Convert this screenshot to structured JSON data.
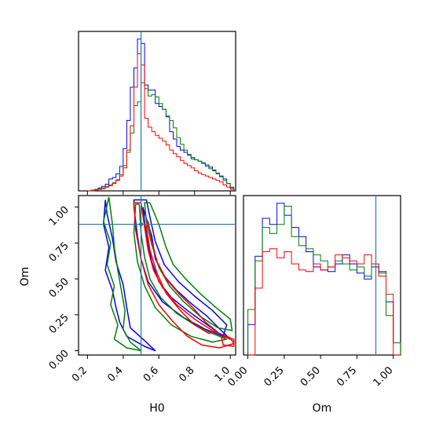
{
  "chart_data": [
    {
      "type": "histogram",
      "panel": "H0 marginal",
      "xlim": [
        0.15,
        1.03
      ],
      "truth_line": 0.5,
      "bin_edges": [
        0.2,
        0.22,
        0.24,
        0.26,
        0.28,
        0.3,
        0.32,
        0.34,
        0.36,
        0.38,
        0.4,
        0.42,
        0.44,
        0.46,
        0.48,
        0.5,
        0.52,
        0.54,
        0.56,
        0.58,
        0.6,
        0.62,
        0.64,
        0.66,
        0.68,
        0.7,
        0.72,
        0.74,
        0.76,
        0.78,
        0.8,
        0.82,
        0.84,
        0.86,
        0.88,
        0.9,
        0.92,
        0.94,
        0.96,
        0.98,
        1.0,
        1.02
      ],
      "series": [
        {
          "color": "#0000ff",
          "counts": [
            0,
            1,
            2,
            4,
            6,
            9,
            16,
            18,
            23,
            33,
            57,
            95,
            140,
            166,
            205,
            199,
            143,
            136,
            136,
            118,
            114,
            110,
            100,
            80,
            70,
            60,
            55,
            52,
            49,
            45,
            42,
            40,
            38,
            35,
            32,
            28,
            24,
            20,
            16,
            10,
            4
          ]
        },
        {
          "color": "#008000",
          "counts": [
            0,
            1,
            2,
            3,
            4,
            6,
            8,
            11,
            15,
            22,
            34,
            52,
            78,
            115,
            120,
            146,
            138,
            128,
            130,
            127,
            118,
            110,
            101,
            95,
            85,
            72,
            63,
            55,
            48,
            43,
            42,
            40,
            37,
            33,
            30,
            27,
            23,
            19,
            14,
            10,
            5
          ]
        },
        {
          "color": "#ff0000",
          "counts": [
            0,
            0,
            1,
            2,
            3,
            5,
            7,
            10,
            14,
            20,
            31,
            55,
            88,
            140,
            185,
            170,
            98,
            86,
            80,
            75,
            71,
            67,
            62,
            55,
            50,
            46,
            41,
            37,
            34,
            31,
            27,
            24,
            22,
            20,
            18,
            16,
            14,
            12,
            8,
            5,
            2
          ]
        }
      ]
    },
    {
      "type": "contour",
      "panel": "H0 vs Om",
      "xlabel": "H0",
      "ylabel": "Om",
      "xlim": [
        0.15,
        1.03
      ],
      "ylim": [
        -0.03,
        1.08
      ],
      "xticks": [
        "0.2",
        "0.4",
        "0.6",
        "0.8",
        "1.0"
      ],
      "yticks": [
        "0.00",
        "0.25",
        "0.50",
        "0.75",
        "1.00"
      ],
      "xtick_values": [
        0.2,
        0.4,
        0.6,
        0.8,
        1.0
      ],
      "ytick_values": [
        0.0,
        0.25,
        0.5,
        0.75,
        1.0
      ],
      "truth": {
        "H0": 0.5,
        "Om": 0.88
      },
      "series": [
        {
          "color": "#0000ff",
          "contours": [
            [
              [
                0.51,
                1.0
              ],
              [
                0.56,
                0.8
              ],
              [
                0.58,
                0.64
              ],
              [
                0.63,
                0.52
              ],
              [
                0.7,
                0.42
              ],
              [
                0.78,
                0.33
              ],
              [
                0.87,
                0.24
              ],
              [
                0.95,
                0.14
              ],
              [
                1.0,
                0.08
              ],
              [
                0.95,
                0.11
              ],
              [
                0.86,
                0.19
              ],
              [
                0.76,
                0.28
              ],
              [
                0.67,
                0.37
              ],
              [
                0.6,
                0.48
              ],
              [
                0.56,
                0.62
              ],
              [
                0.53,
                0.8
              ],
              [
                0.51,
                1.0
              ]
            ],
            [
              [
                0.46,
                1.0
              ],
              [
                0.48,
                0.8
              ],
              [
                0.5,
                0.64
              ],
              [
                0.54,
                0.48
              ],
              [
                0.62,
                0.34
              ],
              [
                0.74,
                0.23
              ],
              [
                0.86,
                0.15
              ],
              [
                0.96,
                0.1
              ],
              [
                0.98,
                0.18
              ],
              [
                0.9,
                0.28
              ],
              [
                0.8,
                0.38
              ],
              [
                0.71,
                0.48
              ],
              [
                0.63,
                0.6
              ],
              [
                0.58,
                0.76
              ],
              [
                0.55,
                0.93
              ],
              [
                0.53,
                1.05
              ],
              [
                0.46,
                1.05
              ],
              [
                0.46,
                1.0
              ]
            ],
            [
              [
                0.3,
                1.05
              ],
              [
                0.29,
                0.88
              ],
              [
                0.32,
                0.72
              ],
              [
                0.3,
                0.56
              ],
              [
                0.34,
                0.42
              ],
              [
                0.36,
                0.3
              ],
              [
                0.38,
                0.2
              ],
              [
                0.42,
                0.1
              ],
              [
                0.52,
                0.03
              ],
              [
                0.58,
                0.0
              ],
              [
                0.52,
                0.07
              ],
              [
                0.44,
                0.16
              ],
              [
                0.42,
                0.3
              ],
              [
                0.4,
                0.46
              ],
              [
                0.36,
                0.62
              ],
              [
                0.34,
                0.78
              ],
              [
                0.31,
                0.95
              ],
              [
                0.3,
                1.05
              ]
            ]
          ]
        },
        {
          "color": "#008000",
          "contours": [
            [
              [
                0.55,
                1.03
              ],
              [
                0.6,
                0.88
              ],
              [
                0.64,
                0.72
              ],
              [
                0.68,
                0.6
              ],
              [
                0.75,
                0.5
              ],
              [
                0.83,
                0.4
              ],
              [
                0.92,
                0.3
              ],
              [
                1.0,
                0.22
              ],
              [
                1.01,
                0.14
              ],
              [
                0.93,
                0.16
              ],
              [
                0.83,
                0.24
              ],
              [
                0.74,
                0.34
              ],
              [
                0.66,
                0.45
              ],
              [
                0.6,
                0.58
              ],
              [
                0.56,
                0.74
              ],
              [
                0.53,
                0.9
              ],
              [
                0.52,
                1.03
              ],
              [
                0.55,
                1.03
              ]
            ],
            [
              [
                0.49,
                1.02
              ],
              [
                0.5,
                0.82
              ],
              [
                0.52,
                0.65
              ],
              [
                0.55,
                0.5
              ],
              [
                0.61,
                0.37
              ],
              [
                0.7,
                0.26
              ],
              [
                0.8,
                0.18
              ],
              [
                0.9,
                0.12
              ],
              [
                0.98,
                0.08
              ],
              [
                0.9,
                0.06
              ],
              [
                0.78,
                0.1
              ],
              [
                0.67,
                0.18
              ],
              [
                0.58,
                0.3
              ],
              [
                0.52,
                0.45
              ],
              [
                0.48,
                0.62
              ],
              [
                0.46,
                0.82
              ],
              [
                0.47,
                1.02
              ],
              [
                0.49,
                1.02
              ]
            ],
            [
              [
                0.32,
                1.07
              ],
              [
                0.29,
                0.9
              ],
              [
                0.33,
                0.75
              ],
              [
                0.31,
                0.6
              ],
              [
                0.35,
                0.45
              ],
              [
                0.33,
                0.32
              ],
              [
                0.37,
                0.18
              ],
              [
                0.35,
                0.08
              ],
              [
                0.42,
                0.02
              ],
              [
                0.5,
                0.0
              ],
              [
                0.44,
                0.06
              ],
              [
                0.4,
                0.15
              ],
              [
                0.41,
                0.28
              ],
              [
                0.39,
                0.42
              ],
              [
                0.37,
                0.56
              ],
              [
                0.35,
                0.72
              ],
              [
                0.34,
                0.88
              ],
              [
                0.32,
                1.07
              ]
            ]
          ]
        },
        {
          "color": "#ff0000",
          "contours": [
            [
              [
                0.5,
                1.03
              ],
              [
                0.52,
                0.86
              ],
              [
                0.54,
                0.7
              ],
              [
                0.57,
                0.56
              ],
              [
                0.62,
                0.44
              ],
              [
                0.7,
                0.32
              ],
              [
                0.8,
                0.22
              ],
              [
                0.9,
                0.14
              ],
              [
                1.0,
                0.09
              ],
              [
                1.02,
                0.05
              ],
              [
                0.94,
                0.02
              ],
              [
                0.84,
                0.04
              ],
              [
                0.76,
                0.1
              ],
              [
                0.68,
                0.2
              ],
              [
                0.6,
                0.32
              ],
              [
                0.54,
                0.46
              ],
              [
                0.5,
                0.64
              ],
              [
                0.47,
                0.84
              ],
              [
                0.46,
                1.03
              ],
              [
                0.5,
                1.03
              ]
            ],
            [
              [
                0.54,
                0.9
              ],
              [
                0.56,
                0.76
              ],
              [
                0.59,
                0.62
              ],
              [
                0.64,
                0.5
              ],
              [
                0.71,
                0.4
              ],
              [
                0.79,
                0.3
              ],
              [
                0.86,
                0.2
              ],
              [
                0.92,
                0.14
              ],
              [
                0.88,
                0.12
              ],
              [
                0.8,
                0.18
              ],
              [
                0.72,
                0.28
              ],
              [
                0.64,
                0.4
              ],
              [
                0.59,
                0.54
              ],
              [
                0.55,
                0.7
              ],
              [
                0.53,
                0.86
              ],
              [
                0.54,
                0.9
              ]
            ],
            [
              [
                0.95,
                0.1
              ],
              [
                1.02,
                0.08
              ],
              [
                1.02,
                0.03
              ],
              [
                0.96,
                0.04
              ],
              [
                0.95,
                0.1
              ]
            ]
          ]
        }
      ]
    },
    {
      "type": "histogram",
      "panel": "Om marginal",
      "xlabel": "Om",
      "xlim": [
        -0.03,
        1.05
      ],
      "xticks": [
        "0.00",
        "0.25",
        "0.50",
        "0.75",
        "1.00"
      ],
      "xtick_values": [
        0.0,
        0.25,
        0.5,
        0.75,
        1.0
      ],
      "truth_line": 0.88,
      "bin_edges": [
        0.0,
        0.05,
        0.1,
        0.15,
        0.2,
        0.25,
        0.3,
        0.35,
        0.4,
        0.45,
        0.5,
        0.55,
        0.6,
        0.65,
        0.7,
        0.75,
        0.8,
        0.85,
        0.9,
        0.95,
        1.0,
        1.05
      ],
      "series": [
        {
          "color": "#0000ff",
          "counts": [
            20,
            65,
            90,
            86,
            100,
            92,
            84,
            78,
            68,
            58,
            56,
            55,
            60,
            66,
            60,
            54,
            50,
            58,
            55,
            35,
            8
          ]
        },
        {
          "color": "#008000",
          "counts": [
            30,
            62,
            84,
            80,
            86,
            98,
            78,
            72,
            70,
            66,
            62,
            58,
            62,
            60,
            56,
            58,
            52,
            60,
            54,
            26,
            8
          ]
        },
        {
          "color": "#ff0000",
          "counts": [
            0,
            44,
            68,
            70,
            64,
            68,
            60,
            56,
            55,
            60,
            56,
            58,
            66,
            64,
            62,
            60,
            66,
            60,
            52,
            40,
            0
          ]
        }
      ]
    }
  ]
}
